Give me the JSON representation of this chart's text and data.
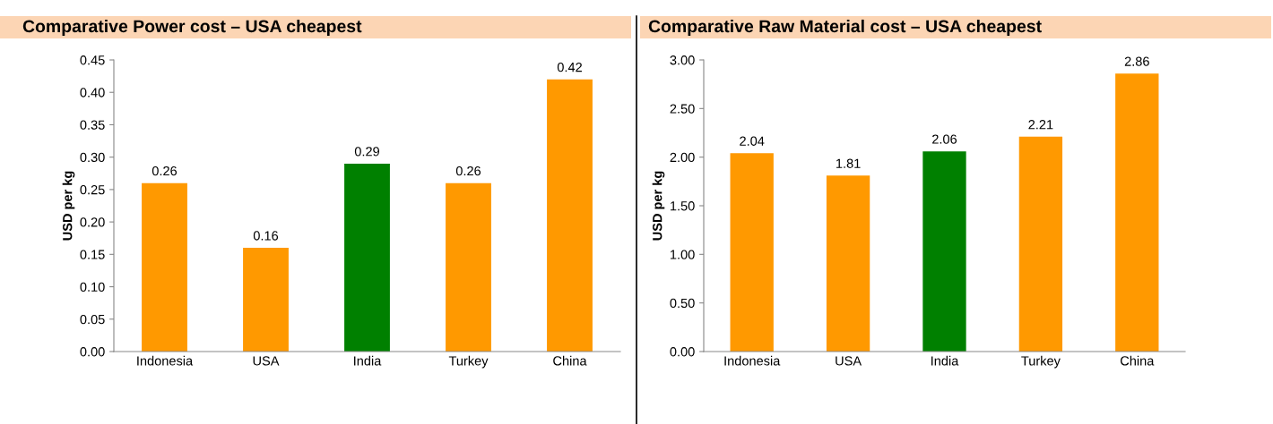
{
  "chart_data": [
    {
      "type": "bar",
      "title": "Comparative Power cost – USA cheapest",
      "ylabel": "USD per kg",
      "categories": [
        "Indonesia",
        "USA",
        "India",
        "Turkey",
        "China"
      ],
      "values": [
        0.26,
        0.16,
        0.29,
        0.26,
        0.42
      ],
      "colors": [
        "#ff9900",
        "#ff9900",
        "#008000",
        "#ff9900",
        "#ff9900"
      ],
      "ylim": [
        0,
        0.45
      ],
      "yticks": [
        {
          "value": 0,
          "label": "0.00"
        },
        {
          "value": 0.05,
          "label": "0.05"
        },
        {
          "value": 0.1,
          "label": "0.10"
        },
        {
          "value": 0.15,
          "label": "0.15"
        },
        {
          "value": 0.2,
          "label": "0.20"
        },
        {
          "value": 0.25,
          "label": "0.25"
        },
        {
          "value": 0.3,
          "label": "0.30"
        },
        {
          "value": 0.35,
          "label": "0.35"
        },
        {
          "value": 0.4,
          "label": "0.40"
        },
        {
          "value": 0.45,
          "label": "0.45"
        }
      ],
      "data_labels": true,
      "grid": false
    },
    {
      "type": "bar",
      "title": "Comparative Raw Material cost – USA cheapest",
      "ylabel": "USD per kg",
      "categories": [
        "Indonesia",
        "USA",
        "India",
        "Turkey",
        "China"
      ],
      "values": [
        2.04,
        1.81,
        2.06,
        2.21,
        2.86
      ],
      "colors": [
        "#ff9900",
        "#ff9900",
        "#008000",
        "#ff9900",
        "#ff9900"
      ],
      "ylim": [
        0,
        3
      ],
      "yticks": [
        {
          "value": 0,
          "label": "0.00"
        },
        {
          "value": 0.5,
          "label": "0.50"
        },
        {
          "value": 1,
          "label": "1.00"
        },
        {
          "value": 1.5,
          "label": "1.50"
        },
        {
          "value": 2,
          "label": "2.00"
        },
        {
          "value": 2.5,
          "label": "2.50"
        },
        {
          "value": 3,
          "label": "3.00"
        }
      ],
      "data_labels": true,
      "grid": false
    }
  ]
}
